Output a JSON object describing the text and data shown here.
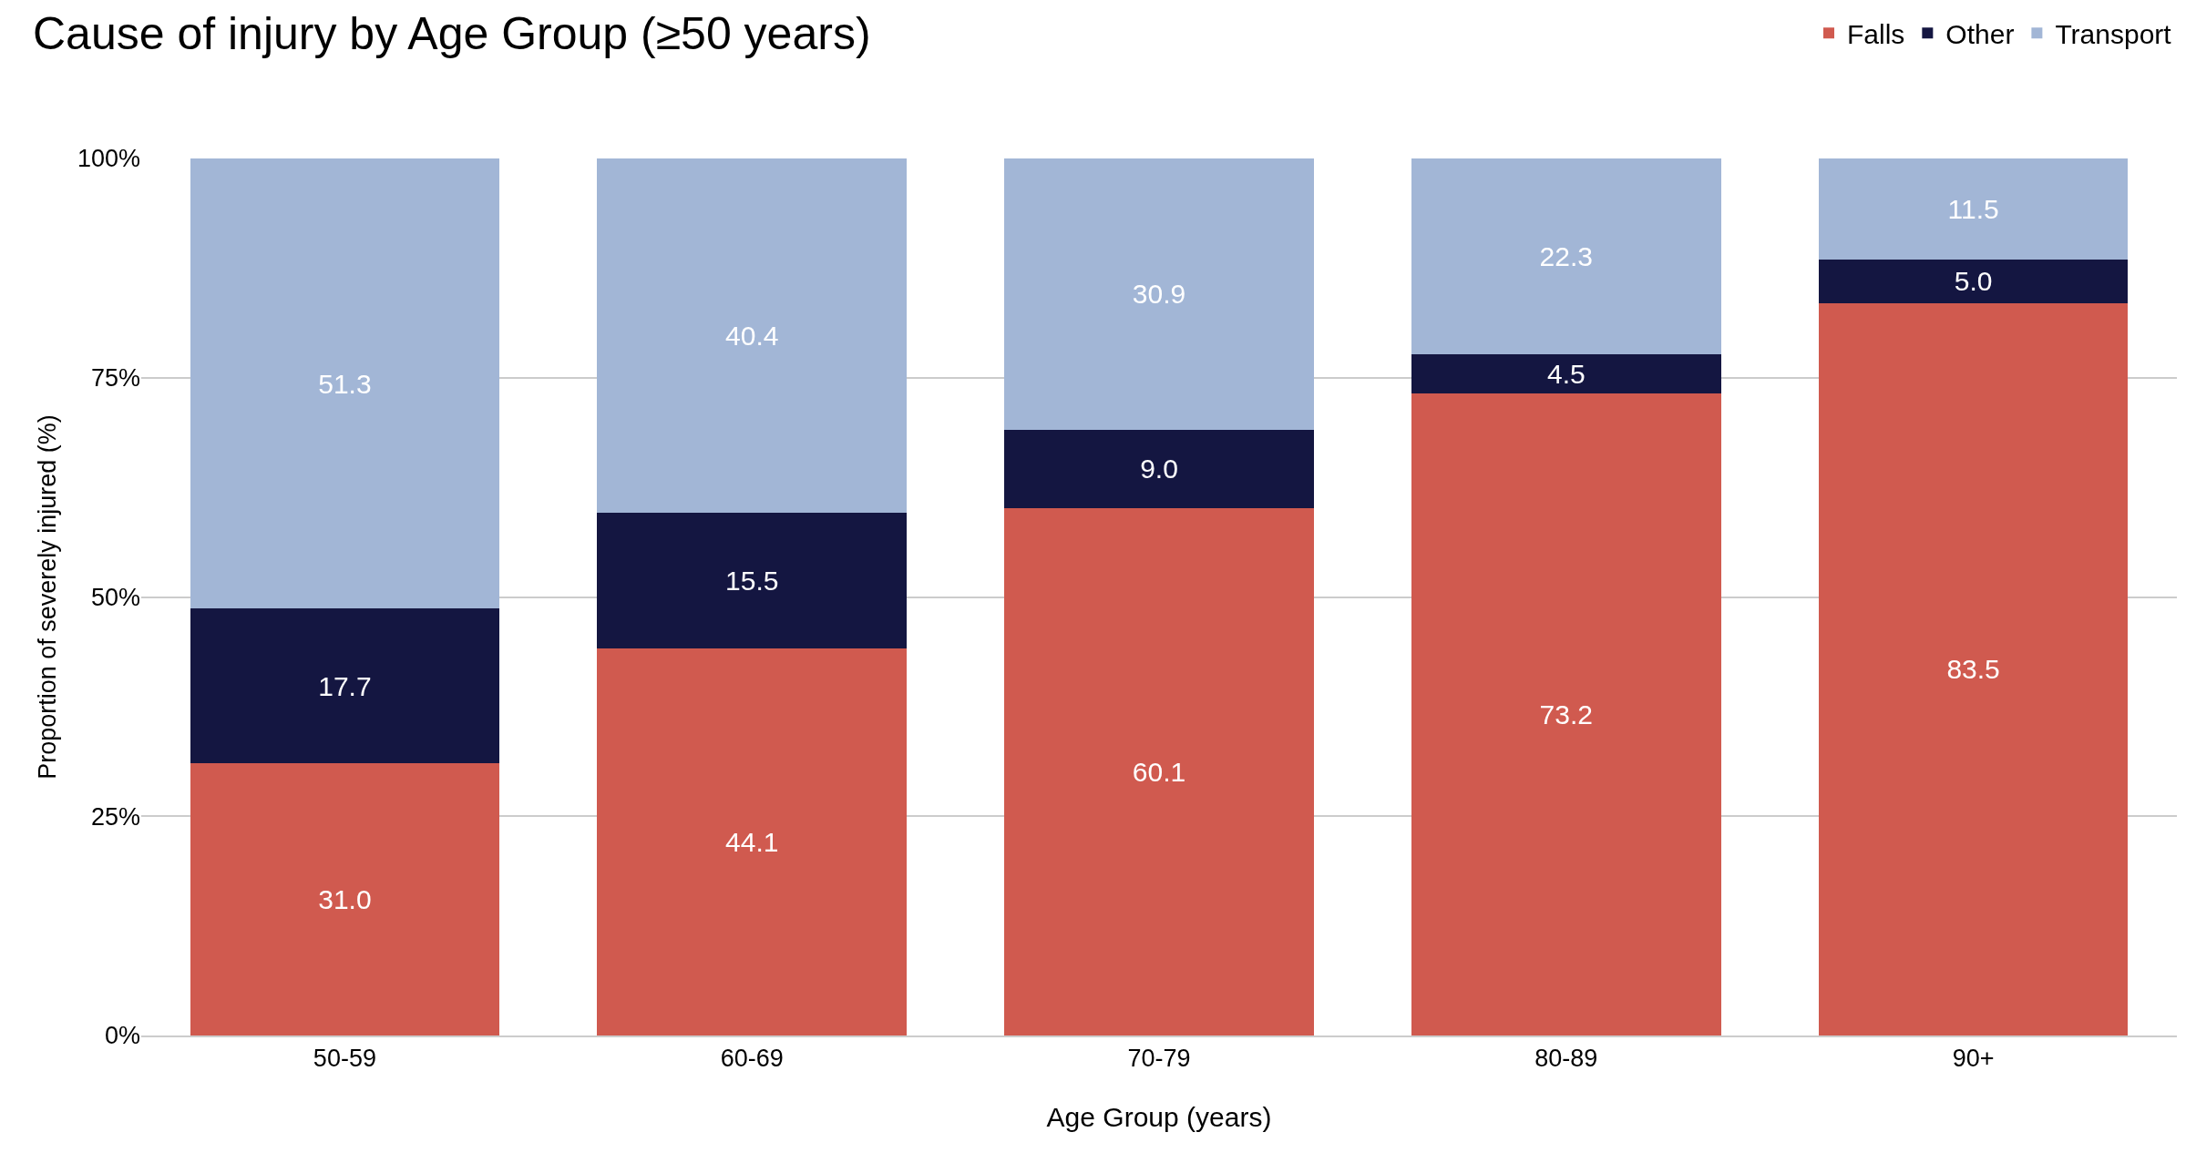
{
  "chart_data": {
    "type": "bar",
    "title": "Cause of injury by Age Group (≥50 years)",
    "xlabel": "Age Group (years)",
    "ylabel": "Proportion of severely injured (%)",
    "categories": [
      "50-59",
      "60-69",
      "70-79",
      "80-89",
      "90+"
    ],
    "series": [
      {
        "name": "Falls",
        "color": "#d05a4f",
        "values": [
          31.0,
          44.1,
          60.1,
          73.2,
          83.5
        ],
        "value_labels": [
          "31.0",
          "44.1",
          "60.1",
          "73.2",
          "83.5"
        ]
      },
      {
        "name": "Other",
        "color": "#141641",
        "values": [
          17.7,
          15.5,
          9.0,
          4.5,
          5.0
        ],
        "value_labels": [
          "17.7",
          "15.5",
          "9.0",
          "4.5",
          "5.0"
        ]
      },
      {
        "name": "Transport",
        "color": "#a2b6d6",
        "values": [
          51.3,
          40.4,
          30.9,
          22.3,
          11.5
        ],
        "value_labels": [
          "51.3",
          "40.4",
          "30.9",
          "22.3",
          "11.5"
        ]
      }
    ],
    "stacked": true,
    "ylim": [
      0,
      100
    ],
    "yticks": [
      {
        "value": 0,
        "label": "0%"
      },
      {
        "value": 25,
        "label": "25%"
      },
      {
        "value": 50,
        "label": "50%"
      },
      {
        "value": 75,
        "label": "75%"
      },
      {
        "value": 100,
        "label": "100%"
      }
    ],
    "grid": "y",
    "legend": "top right"
  }
}
